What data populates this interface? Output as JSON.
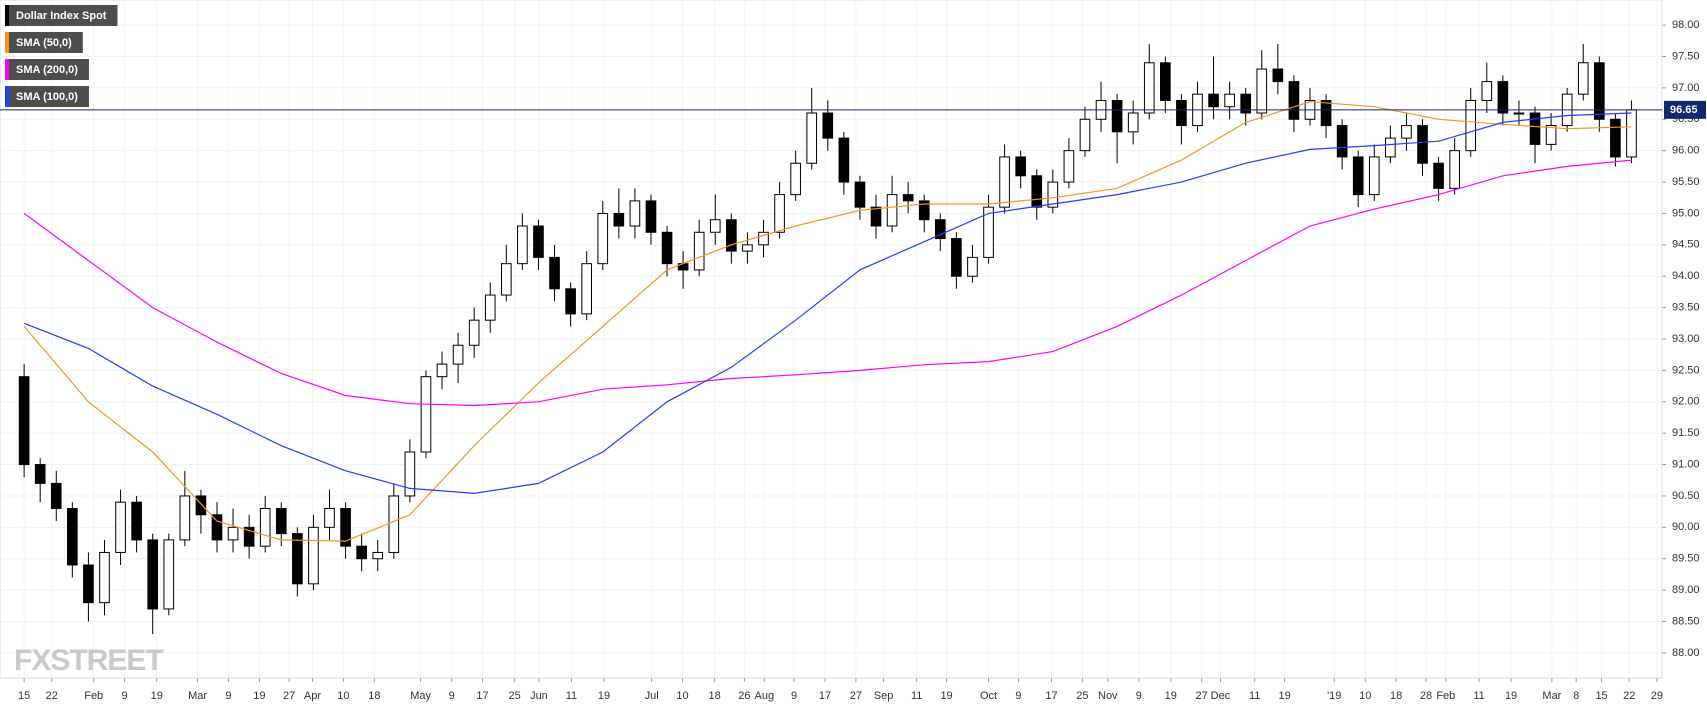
{
  "chart_data": {
    "type": "candlestick",
    "name": "Dollar Index Spot",
    "color": "#000000",
    "up_color": "#ffffff",
    "down_color": "#000000",
    "ohlc": [
      [
        92.4,
        92.6,
        90.8,
        91.0
      ],
      [
        91.0,
        91.1,
        90.4,
        90.7
      ],
      [
        90.7,
        90.9,
        90.1,
        90.3
      ],
      [
        90.3,
        90.4,
        89.2,
        89.4
      ],
      [
        89.4,
        89.6,
        88.5,
        88.8
      ],
      [
        88.8,
        89.8,
        88.6,
        89.6
      ],
      [
        89.6,
        90.6,
        89.4,
        90.4
      ],
      [
        90.4,
        90.5,
        89.6,
        89.8
      ],
      [
        89.8,
        89.9,
        88.3,
        88.7
      ],
      [
        88.7,
        89.9,
        88.6,
        89.8
      ],
      [
        89.8,
        90.9,
        89.7,
        90.5
      ],
      [
        90.5,
        90.6,
        89.9,
        90.2
      ],
      [
        90.2,
        90.4,
        89.6,
        89.8
      ],
      [
        89.8,
        90.3,
        89.6,
        90.0
      ],
      [
        90.0,
        90.2,
        89.5,
        89.7
      ],
      [
        89.7,
        90.5,
        89.6,
        90.3
      ],
      [
        90.3,
        90.4,
        89.7,
        89.9
      ],
      [
        89.9,
        90.0,
        88.9,
        89.1
      ],
      [
        89.1,
        90.2,
        89.0,
        90.0
      ],
      [
        90.0,
        90.6,
        89.8,
        90.3
      ],
      [
        90.3,
        90.4,
        89.5,
        89.7
      ],
      [
        89.7,
        89.9,
        89.3,
        89.5
      ],
      [
        89.5,
        89.8,
        89.3,
        89.6
      ],
      [
        89.6,
        90.7,
        89.5,
        90.5
      ],
      [
        90.5,
        91.4,
        90.4,
        91.2
      ],
      [
        91.2,
        92.5,
        91.1,
        92.4
      ],
      [
        92.4,
        92.8,
        92.2,
        92.6
      ],
      [
        92.6,
        93.1,
        92.3,
        92.9
      ],
      [
        92.9,
        93.5,
        92.7,
        93.3
      ],
      [
        93.3,
        93.9,
        93.1,
        93.7
      ],
      [
        93.7,
        94.5,
        93.6,
        94.2
      ],
      [
        94.2,
        95.0,
        94.1,
        94.8
      ],
      [
        94.8,
        94.9,
        94.1,
        94.3
      ],
      [
        94.3,
        94.5,
        93.6,
        93.8
      ],
      [
        93.8,
        93.9,
        93.2,
        93.4
      ],
      [
        93.4,
        94.4,
        93.3,
        94.2
      ],
      [
        94.2,
        95.2,
        94.1,
        95.0
      ],
      [
        95.0,
        95.4,
        94.6,
        94.8
      ],
      [
        94.8,
        95.4,
        94.6,
        95.2
      ],
      [
        95.2,
        95.3,
        94.5,
        94.7
      ],
      [
        94.7,
        94.8,
        94.0,
        94.2
      ],
      [
        94.2,
        94.4,
        93.8,
        94.1
      ],
      [
        94.1,
        94.9,
        94.0,
        94.7
      ],
      [
        94.7,
        95.3,
        94.5,
        94.9
      ],
      [
        94.9,
        95.0,
        94.2,
        94.4
      ],
      [
        94.4,
        94.7,
        94.2,
        94.5
      ],
      [
        94.5,
        94.9,
        94.3,
        94.7
      ],
      [
        94.7,
        95.5,
        94.6,
        95.3
      ],
      [
        95.3,
        96.0,
        95.2,
        95.8
      ],
      [
        95.8,
        97.0,
        95.7,
        96.6
      ],
      [
        96.6,
        96.8,
        96.0,
        96.2
      ],
      [
        96.2,
        96.3,
        95.3,
        95.5
      ],
      [
        95.5,
        95.6,
        94.9,
        95.1
      ],
      [
        95.1,
        95.3,
        94.6,
        94.8
      ],
      [
        94.8,
        95.6,
        94.7,
        95.3
      ],
      [
        95.3,
        95.5,
        95.0,
        95.2
      ],
      [
        95.2,
        95.3,
        94.7,
        94.9
      ],
      [
        94.9,
        95.0,
        94.4,
        94.6
      ],
      [
        94.6,
        94.7,
        93.8,
        94.0
      ],
      [
        94.0,
        94.5,
        93.9,
        94.3
      ],
      [
        94.3,
        95.3,
        94.2,
        95.1
      ],
      [
        95.1,
        96.1,
        95.0,
        95.9
      ],
      [
        95.9,
        96.0,
        95.4,
        95.6
      ],
      [
        95.6,
        95.7,
        94.9,
        95.1
      ],
      [
        95.1,
        95.7,
        95.0,
        95.5
      ],
      [
        95.5,
        96.2,
        95.4,
        96.0
      ],
      [
        96.0,
        96.7,
        95.9,
        96.5
      ],
      [
        96.5,
        97.1,
        96.3,
        96.8
      ],
      [
        96.8,
        96.9,
        95.8,
        96.3
      ],
      [
        96.3,
        96.8,
        96.1,
        96.6
      ],
      [
        96.6,
        97.7,
        96.5,
        97.4
      ],
      [
        97.4,
        97.5,
        96.6,
        96.8
      ],
      [
        96.8,
        96.9,
        96.1,
        96.4
      ],
      [
        96.4,
        97.1,
        96.3,
        96.9
      ],
      [
        96.9,
        97.5,
        96.5,
        96.7
      ],
      [
        96.7,
        97.1,
        96.5,
        96.9
      ],
      [
        96.9,
        97.0,
        96.4,
        96.6
      ],
      [
        96.6,
        97.6,
        96.5,
        97.3
      ],
      [
        97.3,
        97.7,
        96.9,
        97.1
      ],
      [
        97.1,
        97.2,
        96.3,
        96.5
      ],
      [
        96.5,
        97.0,
        96.4,
        96.8
      ],
      [
        96.8,
        96.9,
        96.2,
        96.4
      ],
      [
        96.4,
        96.5,
        95.7,
        95.9
      ],
      [
        95.9,
        96.0,
        95.1,
        95.3
      ],
      [
        95.3,
        96.1,
        95.2,
        95.9
      ],
      [
        95.9,
        96.4,
        95.8,
        96.2
      ],
      [
        96.2,
        96.6,
        96.0,
        96.4
      ],
      [
        96.4,
        96.5,
        95.6,
        95.8
      ],
      [
        95.8,
        95.9,
        95.2,
        95.4
      ],
      [
        95.4,
        96.2,
        95.3,
        96.0
      ],
      [
        96.0,
        97.0,
        95.9,
        96.8
      ],
      [
        96.8,
        97.4,
        96.6,
        97.1
      ],
      [
        97.1,
        97.2,
        96.4,
        96.6
      ],
      [
        96.6,
        96.8,
        96.4,
        96.6
      ],
      [
        96.6,
        96.7,
        95.8,
        96.1
      ],
      [
        96.1,
        96.6,
        96.0,
        96.4
      ],
      [
        96.4,
        97.0,
        96.3,
        96.9
      ],
      [
        96.9,
        97.7,
        96.8,
        97.4
      ],
      [
        97.4,
        97.5,
        96.3,
        96.5
      ],
      [
        96.5,
        96.6,
        95.75,
        95.9
      ],
      [
        95.9,
        96.8,
        95.8,
        96.65
      ]
    ],
    "series": [
      {
        "name": "SMA (50,0)",
        "color": "#f7931e",
        "x": [
          0,
          4,
          8,
          12,
          16,
          20,
          24,
          28,
          32,
          36,
          40,
          44,
          48,
          52,
          56,
          60,
          64,
          68,
          72,
          76,
          80,
          84,
          88,
          92,
          96,
          100
        ],
        "values": [
          93.2,
          92.0,
          91.2,
          90.1,
          89.8,
          89.78,
          90.2,
          91.3,
          92.3,
          93.2,
          94.1,
          94.5,
          94.8,
          95.05,
          95.15,
          95.15,
          95.25,
          95.4,
          95.85,
          96.45,
          96.78,
          96.7,
          96.5,
          96.42,
          96.35,
          96.38
        ]
      },
      {
        "name": "SMA (200,0)",
        "color": "#ff00ff",
        "x": [
          0,
          4,
          8,
          12,
          16,
          20,
          24,
          28,
          32,
          36,
          40,
          44,
          48,
          52,
          56,
          60,
          64,
          68,
          72,
          76,
          80,
          84,
          88,
          92,
          96,
          100
        ],
        "values": [
          95.0,
          94.25,
          93.5,
          92.95,
          92.45,
          92.1,
          91.97,
          91.94,
          92.0,
          92.2,
          92.27,
          92.37,
          92.43,
          92.5,
          92.59,
          92.64,
          92.8,
          93.2,
          93.7,
          94.25,
          94.8,
          95.07,
          95.3,
          95.6,
          95.75,
          95.85
        ]
      },
      {
        "name": "SMA (100,0)",
        "color": "#1f3fff",
        "x": [
          0,
          4,
          8,
          12,
          16,
          20,
          24,
          28,
          32,
          36,
          40,
          44,
          48,
          52,
          56,
          60,
          64,
          68,
          72,
          76,
          80,
          84,
          88,
          92,
          96,
          100
        ],
        "values": [
          93.25,
          92.85,
          92.25,
          91.8,
          91.3,
          90.9,
          90.62,
          90.54,
          90.7,
          91.2,
          92.0,
          92.55,
          93.3,
          94.1,
          94.55,
          95.0,
          95.15,
          95.3,
          95.5,
          95.8,
          96.02,
          96.08,
          96.15,
          96.45,
          96.56,
          96.6
        ]
      }
    ],
    "last_price": 96.65,
    "last_price_color": "#14286e",
    "xlim": [
      -1.5,
      101.9
    ],
    "xticks": [
      {
        "value": 0,
        "label": "15"
      },
      {
        "value": 1.72,
        "label": "22"
      },
      {
        "value": 4.33,
        "label": "Feb"
      },
      {
        "value": 6.25,
        "label": "9"
      },
      {
        "value": 8.25,
        "label": "19"
      },
      {
        "value": 10.79,
        "label": "Mar"
      },
      {
        "value": 12.71,
        "label": "9"
      },
      {
        "value": 14.64,
        "label": "19"
      },
      {
        "value": 16.49,
        "label": "27"
      },
      {
        "value": 17.94,
        "label": "Apr"
      },
      {
        "value": 19.86,
        "label": "10"
      },
      {
        "value": 21.79,
        "label": "18"
      },
      {
        "value": 24.67,
        "label": "May"
      },
      {
        "value": 26.6,
        "label": "9"
      },
      {
        "value": 28.52,
        "label": "17"
      },
      {
        "value": 30.52,
        "label": "25"
      },
      {
        "value": 32.03,
        "label": "Jun"
      },
      {
        "value": 34.05,
        "label": "11"
      },
      {
        "value": 36.08,
        "label": "19"
      },
      {
        "value": 39.04,
        "label": "Jul"
      },
      {
        "value": 40.96,
        "label": "10"
      },
      {
        "value": 42.96,
        "label": "18"
      },
      {
        "value": 44.81,
        "label": "26"
      },
      {
        "value": 46.05,
        "label": "Aug"
      },
      {
        "value": 47.9,
        "label": "9"
      },
      {
        "value": 49.83,
        "label": "17"
      },
      {
        "value": 51.75,
        "label": "27"
      },
      {
        "value": 53.47,
        "label": "Sep"
      },
      {
        "value": 55.53,
        "label": "11"
      },
      {
        "value": 57.39,
        "label": "19"
      },
      {
        "value": 60.0,
        "label": "Oct"
      },
      {
        "value": 61.86,
        "label": "9"
      },
      {
        "value": 63.92,
        "label": "17"
      },
      {
        "value": 65.84,
        "label": "25"
      },
      {
        "value": 67.42,
        "label": "Nov"
      },
      {
        "value": 69.35,
        "label": "9"
      },
      {
        "value": 71.34,
        "label": "19"
      },
      {
        "value": 73.26,
        "label": "27"
      },
      {
        "value": 74.43,
        "label": "Dec"
      },
      {
        "value": 76.56,
        "label": "11"
      },
      {
        "value": 78.42,
        "label": "19"
      },
      {
        "value": 81.51,
        "label": "'19"
      },
      {
        "value": 83.44,
        "label": "10"
      },
      {
        "value": 85.36,
        "label": "18"
      },
      {
        "value": 87.22,
        "label": "28"
      },
      {
        "value": 88.45,
        "label": "Feb"
      },
      {
        "value": 90.52,
        "label": "11"
      },
      {
        "value": 92.51,
        "label": "19"
      },
      {
        "value": 95.05,
        "label": "Mar"
      },
      {
        "value": 96.56,
        "label": "8"
      },
      {
        "value": 98.14,
        "label": "15"
      },
      {
        "value": 99.86,
        "label": "22"
      },
      {
        "value": 101.58,
        "label": "29"
      }
    ],
    "ylim": [
      87.6,
      98.4
    ],
    "yticks": [
      {
        "value": 88,
        "label": "88.00"
      },
      {
        "value": 88.5,
        "label": "88.50"
      },
      {
        "value": 89,
        "label": "89.00"
      },
      {
        "value": 89.5,
        "label": "89.50"
      },
      {
        "value": 90,
        "label": "90.00"
      },
      {
        "value": 90.5,
        "label": "90.50"
      },
      {
        "value": 91,
        "label": "91.00"
      },
      {
        "value": 91.5,
        "label": "91.50"
      },
      {
        "value": 92,
        "label": "92.00"
      },
      {
        "value": 92.5,
        "label": "92.50"
      },
      {
        "value": 93,
        "label": "93.00"
      },
      {
        "value": 93.5,
        "label": "93.50"
      },
      {
        "value": 94,
        "label": "94.00"
      },
      {
        "value": 94.5,
        "label": "94.50"
      },
      {
        "value": 95,
        "label": "95.00"
      },
      {
        "value": 95.5,
        "label": "95.50"
      },
      {
        "value": 96,
        "label": "96.00"
      },
      {
        "value": 96.5,
        "label": "96.50"
      },
      {
        "value": 97,
        "label": "97.00"
      },
      {
        "value": 97.5,
        "label": "97.50"
      },
      {
        "value": 98,
        "label": "98.00"
      }
    ],
    "grid": true,
    "watermark": "FXSTREET"
  }
}
